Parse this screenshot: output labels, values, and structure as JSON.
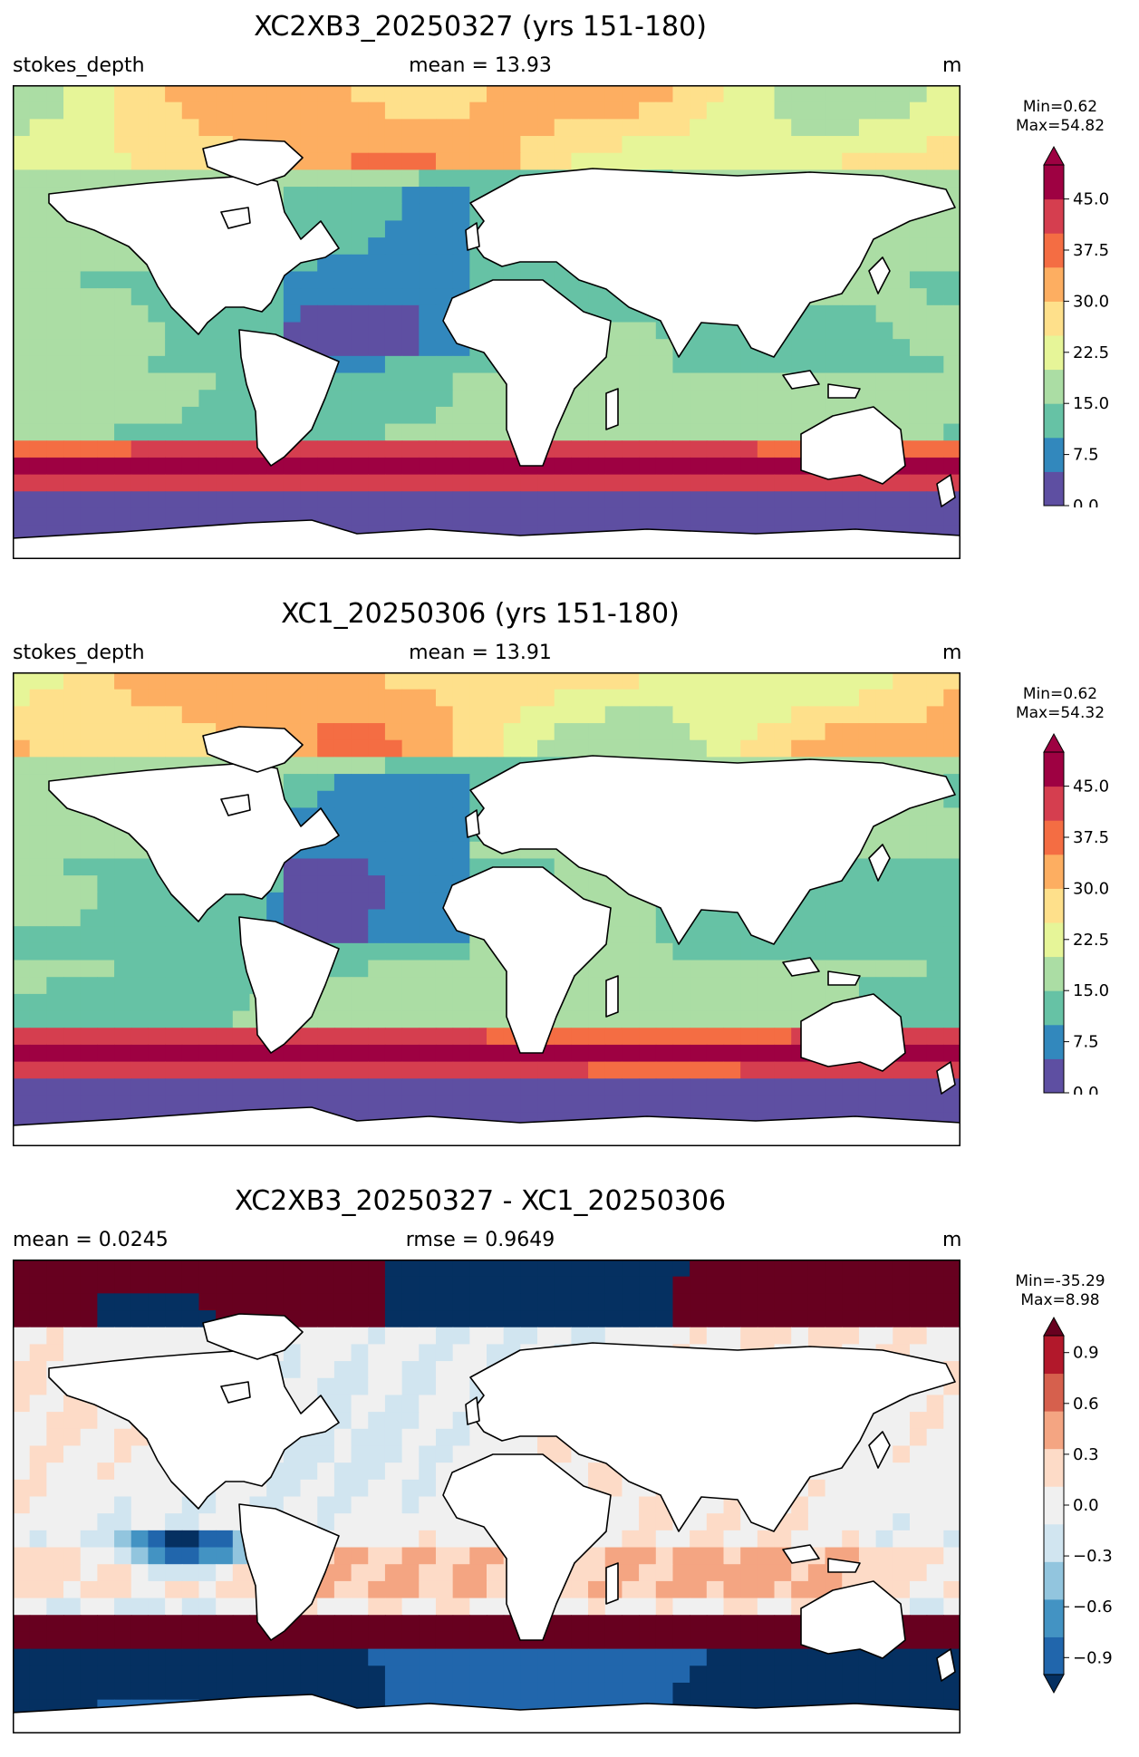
{
  "panels": [
    {
      "title": "XC2XB3_20250327 (yrs 151-180)",
      "left_label": "stokes_depth",
      "center_label": "mean = 13.93",
      "right_label": "m",
      "min_label": "Min=0.62",
      "max_label": "Max=54.82"
    },
    {
      "title": "XC1_20250306 (yrs 151-180)",
      "left_label": "stokes_depth",
      "center_label": "mean = 13.91",
      "right_label": "m",
      "min_label": "Min=0.62",
      "max_label": "Max=54.32"
    },
    {
      "title": "XC2XB3_20250327 - XC1_20250306",
      "left_label": "mean = 0.0245",
      "center_label": "rmse = 0.9649",
      "right_label": "m",
      "min_label": "Min=-35.29",
      "max_label": "Max=8.98"
    }
  ],
  "chart_data": [
    {
      "type": "heatmap",
      "title": "XC2XB3_20250327 (yrs 151-180)",
      "variable": "stokes_depth",
      "units": "m",
      "mean": 13.93,
      "min": 0.62,
      "max": 54.82,
      "colormap": "Spectral_r",
      "colorbar_ticks": [
        0.0,
        7.5,
        15.0,
        22.5,
        30.0,
        37.5,
        45.0
      ],
      "colorbar_tick_labels": [
        "0.0",
        "7.5",
        "15.0",
        "22.5",
        "30.0",
        "37.5",
        "45.0"
      ],
      "colorbar_range": [
        0,
        50
      ],
      "colorbar_extend": "max",
      "colors": [
        "#5e4fa2",
        "#3288bd",
        "#66c2a5",
        "#abdda4",
        "#e6f598",
        "#fee08b",
        "#fdae61",
        "#f46d43",
        "#d53e4f",
        "#9e0142"
      ]
    },
    {
      "type": "heatmap",
      "title": "XC1_20250306 (yrs 151-180)",
      "variable": "stokes_depth",
      "units": "m",
      "mean": 13.91,
      "min": 0.62,
      "max": 54.32,
      "colormap": "Spectral_r",
      "colorbar_ticks": [
        0.0,
        7.5,
        15.0,
        22.5,
        30.0,
        37.5,
        45.0
      ],
      "colorbar_tick_labels": [
        "0.0",
        "7.5",
        "15.0",
        "22.5",
        "30.0",
        "37.5",
        "45.0"
      ],
      "colorbar_range": [
        0,
        50
      ],
      "colorbar_extend": "max",
      "colors": [
        "#5e4fa2",
        "#3288bd",
        "#66c2a5",
        "#abdda4",
        "#e6f598",
        "#fee08b",
        "#fdae61",
        "#f46d43",
        "#d53e4f",
        "#9e0142"
      ]
    },
    {
      "type": "heatmap",
      "title": "XC2XB3_20250327 - XC1_20250306",
      "units": "m",
      "mean": 0.0245,
      "rmse": 0.9649,
      "min": -35.29,
      "max": 8.98,
      "colormap": "RdBu_r",
      "colorbar_ticks": [
        -0.9,
        -0.6,
        -0.3,
        0.0,
        0.3,
        0.6,
        0.9
      ],
      "colorbar_tick_labels": [
        "−0.9",
        "−0.6",
        "−0.3",
        "0.0",
        "0.3",
        "0.6",
        "0.9"
      ],
      "colorbar_range": [
        -1.0,
        1.0
      ],
      "colorbar_extend": "both",
      "colors": [
        "#053061",
        "#2166ac",
        "#4393c3",
        "#92c5de",
        "#d1e5f0",
        "#f0f0f0",
        "#fddbc7",
        "#f4a582",
        "#d6604d",
        "#b2182b",
        "#67001f"
      ]
    }
  ]
}
